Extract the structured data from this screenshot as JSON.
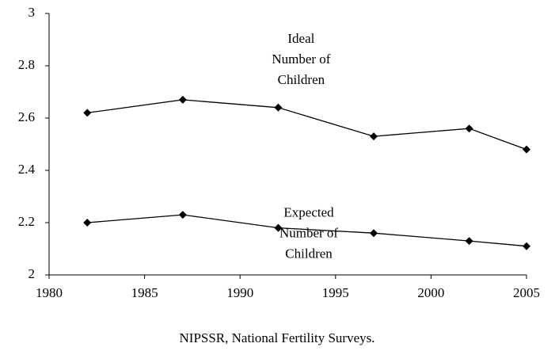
{
  "chart_data": {
    "type": "line",
    "x": [
      1982,
      1987,
      1992,
      1997,
      2002,
      2005
    ],
    "series": [
      {
        "name": "Ideal Number of Children",
        "color": "#000000",
        "values": [
          2.62,
          2.67,
          2.64,
          2.53,
          2.56,
          2.48
        ]
      },
      {
        "name": "Expected Number of Children",
        "color": "#000000",
        "values": [
          2.2,
          2.23,
          2.18,
          2.16,
          2.13,
          2.11
        ]
      }
    ],
    "xlim": [
      1980,
      2005
    ],
    "xticks": [
      1980,
      1985,
      1990,
      1995,
      2000,
      2005
    ],
    "ylim": [
      2,
      3
    ],
    "yticks": [
      2,
      2.2,
      2.4,
      2.6,
      2.8,
      3
    ],
    "grid": false,
    "source": "NIPSSR, National Fertility Surveys."
  }
}
